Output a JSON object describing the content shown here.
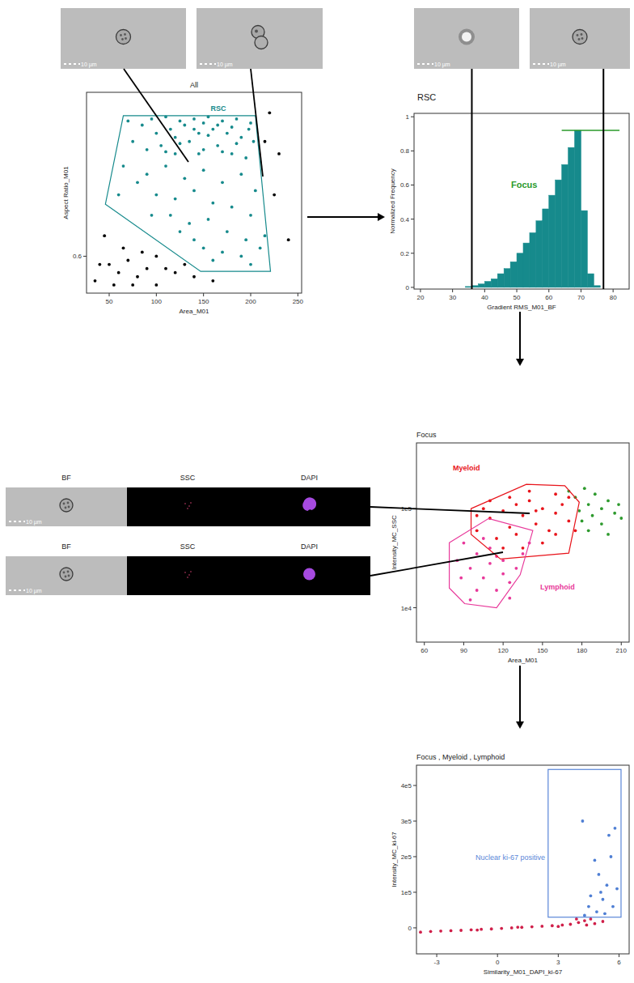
{
  "figure": {
    "scale_bar": "10 µm",
    "channels": [
      "BF",
      "SSC",
      "DAPI"
    ]
  },
  "chart_data": [
    {
      "type": "scatter",
      "title": "All",
      "x_label": "Area_M01",
      "y_label": "Aspect Ratio_M01",
      "xlim": [
        26,
        254
      ],
      "ylim": [
        0.51,
        1.0
      ],
      "xticks": [
        50,
        100,
        150,
        200,
        250
      ],
      "yticks": [
        0.6
      ],
      "series": [
        {
          "color": "#168a8c",
          "x": [
            95,
            110,
            125,
            140,
            155,
            170,
            185,
            200,
            100,
            115,
            130,
            145,
            160,
            175,
            190,
            203,
            90,
            105,
            120,
            135,
            150,
            165,
            180,
            195,
            85,
            75,
            70,
            198,
            90,
            110,
            130,
            150,
            170,
            190,
            205,
            100,
            120,
            140,
            160,
            180,
            200,
            80,
            65,
            60,
            115,
            135,
            155,
            175,
            195,
            150,
            170,
            190,
            210,
            140,
            125,
            160,
            200,
            215,
            95,
            150,
            165,
            180,
            120,
            140,
            185,
            155,
            125,
            170,
            110,
            145
          ],
          "values": [
            0.935,
            0.94,
            0.93,
            0.935,
            0.94,
            0.93,
            0.935,
            0.925,
            0.9,
            0.91,
            0.92,
            0.9,
            0.91,
            0.9,
            0.89,
            0.88,
            0.86,
            0.87,
            0.85,
            0.88,
            0.86,
            0.87,
            0.85,
            0.84,
            0.92,
            0.88,
            0.93,
            0.91,
            0.8,
            0.82,
            0.79,
            0.81,
            0.78,
            0.8,
            0.76,
            0.75,
            0.74,
            0.76,
            0.73,
            0.72,
            0.7,
            0.78,
            0.82,
            0.75,
            0.7,
            0.68,
            0.69,
            0.66,
            0.64,
            0.62,
            0.61,
            0.6,
            0.62,
            0.64,
            0.66,
            0.59,
            0.58,
            0.65,
            0.7,
            0.925,
            0.92,
            0.915,
            0.89,
            0.91,
            0.875,
            0.895,
            0.875,
            0.855,
            0.855,
            0.85
          ]
        },
        {
          "color": "#000000",
          "x": [
            50,
            60,
            70,
            80,
            90,
            100,
            110,
            75,
            55,
            120,
            85,
            65,
            40,
            130,
            45,
            225,
            230,
            240,
            220,
            215,
            100,
            140,
            160,
            35
          ],
          "values": [
            0.58,
            0.56,
            0.59,
            0.55,
            0.57,
            0.6,
            0.57,
            0.53,
            0.53,
            0.56,
            0.61,
            0.62,
            0.58,
            0.58,
            0.65,
            0.75,
            0.85,
            0.64,
            0.95,
            0.88,
            0.53,
            0.55,
            0.54,
            0.54
          ]
        }
      ],
      "gates": [
        {
          "name": "RSC",
          "color": "#168a8c",
          "points": [
            [
              65,
              0.943
            ],
            [
              205,
              0.943
            ],
            [
              221,
              0.563
            ],
            [
              147,
              0.563
            ],
            [
              46,
              0.727
            ]
          ]
        }
      ]
    },
    {
      "type": "histogram",
      "title": "RSC",
      "x_label": "Gradient RMS_M01_BF",
      "y_label": "Normalized Frequency",
      "xlim": [
        18,
        85
      ],
      "ylim": [
        -0.01,
        1.02
      ],
      "xticks": [
        20,
        30,
        40,
        50,
        60,
        70,
        80
      ],
      "yticks": [
        0,
        0.2,
        0.4,
        0.6,
        0.8,
        1
      ],
      "color": "#168a8c",
      "bins": [
        34,
        36,
        38,
        40,
        42,
        44,
        46,
        48,
        50,
        52,
        54,
        56,
        58,
        60,
        62,
        64,
        66,
        68,
        70,
        72,
        74,
        76
      ],
      "values": [
        0.005,
        0.01,
        0.02,
        0.035,
        0.05,
        0.08,
        0.11,
        0.15,
        0.2,
        0.26,
        0.32,
        0.39,
        0.46,
        0.54,
        0.63,
        0.72,
        0.82,
        0.92,
        0.45,
        0.08,
        0.01
      ],
      "gates": [
        {
          "name": "Focus",
          "color": "#2a9a2a",
          "range": [
            64,
            82
          ],
          "level": 0.92
        }
      ],
      "reference_lines": [
        36,
        77
      ]
    },
    {
      "type": "scatter",
      "title": "Focus",
      "x_label": "Area_M01",
      "y_label": "Intensity_MC_SSC",
      "log": "y",
      "xlim": [
        54,
        216
      ],
      "ylim": [
        4500,
        460000
      ],
      "xticks": [
        60,
        90,
        120,
        150,
        180,
        210
      ],
      "yticks": [
        {
          "value": 10000,
          "label": "1e4"
        },
        {
          "value": 100000,
          "label": "1e5"
        }
      ],
      "series": [
        {
          "color": "#2e9a2e",
          "x": [
            175,
            185,
            195,
            205,
            180,
            190,
            200,
            210,
            185,
            195,
            170,
            178,
            200,
            188,
            208,
            182
          ],
          "values": [
            130000,
            110000,
            100000,
            90000,
            75000,
            140000,
            120000,
            80000,
            60000,
            70000,
            150000,
            95000,
            55000,
            85000,
            110000,
            160000
          ]
        },
        {
          "color": "#e8389a",
          "x": [
            85,
            95,
            105,
            115,
            125,
            100,
            110,
            120,
            130,
            90,
            100,
            135,
            95,
            110,
            120,
            140,
            88,
            105,
            125,
            115
          ],
          "values": [
            30000,
            25000,
            20000,
            15000,
            18000,
            35000,
            40000,
            30000,
            25000,
            45000,
            15000,
            35000,
            12000,
            28000,
            22000,
            45000,
            20000,
            50000,
            12500,
            33000
          ]
        },
        {
          "color": "#e8141b",
          "x": [
            100,
            110,
            120,
            130,
            140,
            150,
            160,
            170,
            115,
            125,
            135,
            145,
            155,
            165,
            105,
            125,
            140,
            160,
            150,
            135,
            120,
            175,
            110,
            145,
            130,
            160,
            100,
            170
          ],
          "values": [
            60000,
            80000,
            95000,
            110000,
            120000,
            100000,
            90000,
            75000,
            50000,
            65000,
            85000,
            70000,
            60000,
            110000,
            100000,
            130000,
            150000,
            140000,
            45000,
            40000,
            40000,
            60000,
            120000,
            95000,
            55000,
            55000,
            85000,
            130000
          ]
        }
      ],
      "gates": [
        {
          "name": "Myeloid",
          "color": "#e8141b",
          "points": [
            [
              95.6,
              100000
            ],
            [
              137.7,
              176000
            ],
            [
              167,
              170000
            ],
            [
              178,
              116000
            ],
            [
              170,
              35500
            ],
            [
              118,
              31000
            ],
            [
              95.6,
              55000
            ]
          ]
        },
        {
          "name": "Lymphoid",
          "color": "#e8389a",
          "points": [
            [
              79,
              45300
            ],
            [
              109,
              79500
            ],
            [
              142.6,
              60000
            ],
            [
              133,
              21500
            ],
            [
              115,
              10000
            ],
            [
              90.7,
              11000
            ],
            [
              79,
              15800
            ]
          ]
        }
      ]
    },
    {
      "type": "scatter",
      "title": "Focus , Myeloid , Lymphoid",
      "x_label": "Similarity_M01_DAPI_ki-67",
      "y_label": "Intensity_MC_ki-67",
      "xlim": [
        -4,
        6.5
      ],
      "ylim": [
        -73000,
        457000
      ],
      "xticks": [
        -3,
        0,
        3,
        6
      ],
      "yticks": [
        0,
        {
          "value": 100000,
          "label": "1e5"
        },
        {
          "value": 200000,
          "label": "2e5"
        },
        {
          "value": 300000,
          "label": "3e5"
        },
        {
          "value": 400000,
          "label": "4e5"
        }
      ],
      "series": [
        {
          "color": "#d0204a",
          "x": [
            -3.8,
            -3.3,
            -2.8,
            -2.3,
            -1.8,
            -1.3,
            -0.8,
            -0.3,
            0.2,
            0.7,
            1.2,
            1.7,
            2.2,
            2.7,
            3.2,
            3.6,
            4.0,
            4.3,
            4.6,
            3.9,
            4.8,
            5.2,
            4.4,
            -1.0,
            1.0,
            3.0
          ],
          "values": [
            -12000,
            -10000,
            -9000,
            -8000,
            -7000,
            -5500,
            -4000,
            -3000,
            -1500,
            0,
            1500,
            3000,
            4500,
            6000,
            8000,
            10000,
            15000,
            20000,
            25000,
            25000,
            12000,
            18000,
            8000,
            -6000,
            2000,
            4000
          ]
        },
        {
          "color": "#4f7fd4",
          "x": [
            4.2,
            4.8,
            5.5,
            5.8,
            5.0,
            5.4,
            4.6,
            5.9,
            5.2,
            4.5,
            5.7,
            4.9,
            5.3,
            4.3,
            5.6,
            5.1
          ],
          "values": [
            300000,
            190000,
            260000,
            280000,
            150000,
            120000,
            90000,
            110000,
            80000,
            60000,
            60000,
            45000,
            40000,
            35000,
            200000,
            100000
          ]
        }
      ],
      "gates": [
        {
          "name": "Nuclear ki-67 positive",
          "color": "#5a86d8",
          "xrange": [
            2.5,
            6.1
          ],
          "yrange": [
            30000,
            445000
          ]
        }
      ]
    }
  ]
}
